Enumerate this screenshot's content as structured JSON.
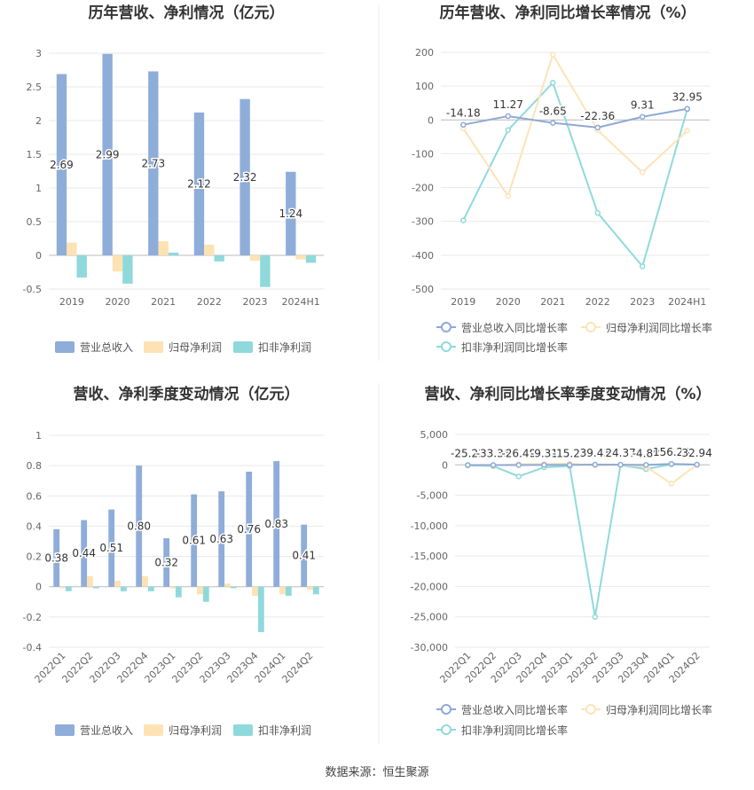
{
  "colors": {
    "revenue": "#8fadd9",
    "net_profit": "#fde2b3",
    "deducted_profit": "#8fd9db",
    "revenue_line": "#8fa9d6",
    "net_profit_line": "#fde3b8",
    "deducted_line": "#8fdadc"
  },
  "footer": {
    "source": "数据来源：恒生聚源"
  },
  "chart_data": [
    {
      "id": "annual-bar",
      "type": "bar",
      "title": "历年营收、净利情况（亿元）",
      "categories": [
        "2019",
        "2020",
        "2021",
        "2022",
        "2023",
        "2024H1"
      ],
      "ylim": [
        -0.5,
        3
      ],
      "yticks": [
        -0.5,
        0,
        0.5,
        1,
        1.5,
        2,
        2.5,
        3
      ],
      "grid": true,
      "legend_position": "bottom",
      "series": [
        {
          "name": "营业总收入",
          "values": [
            2.69,
            2.99,
            2.73,
            2.12,
            2.32,
            1.24
          ],
          "labels": [
            "2.69",
            "2.99",
            "2.73",
            "2.12",
            "2.32",
            "1.24"
          ]
        },
        {
          "name": "归母净利润",
          "values": [
            0.19,
            -0.24,
            0.21,
            0.16,
            -0.08,
            -0.06
          ]
        },
        {
          "name": "扣非净利润",
          "values": [
            -0.33,
            -0.42,
            0.04,
            -0.09,
            -0.47,
            -0.11
          ]
        }
      ]
    },
    {
      "id": "annual-line",
      "type": "line",
      "title": "历年营收、净利同比增长率情况（%）",
      "categories": [
        "2019",
        "2020",
        "2021",
        "2022",
        "2023",
        "2024H1"
      ],
      "ylim": [
        -500,
        200
      ],
      "yticks": [
        -500,
        -400,
        -300,
        -200,
        -100,
        0,
        100,
        200
      ],
      "grid": true,
      "legend_position": "bottom",
      "series": [
        {
          "name": "营业总收入同比增长率",
          "values": [
            -14.18,
            11.27,
            -8.65,
            -22.36,
            9.31,
            32.95
          ],
          "labels": [
            "-14.18",
            "11.27",
            "-8.65",
            "-22.36",
            "9.31",
            "32.95"
          ]
        },
        {
          "name": "归母净利润同比增长率",
          "values": [
            -25,
            -225,
            193,
            -30,
            -155,
            -32
          ]
        },
        {
          "name": "扣非净利润同比增长率",
          "values": [
            -297,
            -30,
            110,
            -275,
            -433,
            32
          ]
        }
      ]
    },
    {
      "id": "quarter-bar",
      "type": "bar",
      "title": "营收、净利季度变动情况（亿元）",
      "categories": [
        "2022Q1",
        "2022Q2",
        "2022Q3",
        "2022Q4",
        "2023Q1",
        "2023Q2",
        "2023Q3",
        "2023Q4",
        "2024Q1",
        "2024Q2"
      ],
      "ylim": [
        -0.4,
        1
      ],
      "yticks": [
        -0.4,
        -0.2,
        0,
        0.2,
        0.4,
        0.6,
        0.8,
        1
      ],
      "grid": true,
      "legend_position": "bottom",
      "series": [
        {
          "name": "营业总收入",
          "values": [
            0.38,
            0.44,
            0.51,
            0.8,
            0.32,
            0.61,
            0.63,
            0.76,
            0.83,
            0.41
          ],
          "labels": [
            "0.38",
            "0.44",
            "0.51",
            "0.80",
            "0.32",
            "0.61",
            "0.63",
            "0.76",
            "0.83",
            "0.41"
          ]
        },
        {
          "name": "归母净利润",
          "values": [
            -0.01,
            0.07,
            0.04,
            0.07,
            -0.01,
            -0.05,
            0.02,
            -0.06,
            -0.05,
            -0.02
          ]
        },
        {
          "name": "扣非净利润",
          "values": [
            -0.03,
            -0.01,
            -0.03,
            -0.03,
            -0.07,
            -0.1,
            -0.01,
            -0.3,
            -0.06,
            -0.05
          ]
        }
      ]
    },
    {
      "id": "quarter-line",
      "type": "line",
      "title": "营收、净利同比增长率季度变动情况（%）",
      "categories": [
        "2022Q1",
        "2022Q2",
        "2022Q3",
        "2022Q4",
        "2023Q1",
        "2023Q2",
        "2023Q3",
        "2023Q4",
        "2024Q1",
        "2024Q2"
      ],
      "ylim": [
        -30000,
        5000
      ],
      "yticks": [
        -30000,
        -25000,
        -20000,
        -15000,
        -10000,
        -5000,
        0,
        5000
      ],
      "grid": true,
      "legend_position": "bottom",
      "series": [
        {
          "name": "营业总收入同比增长率",
          "values": [
            -25.22,
            -33.35,
            -26.48,
            -9.31,
            -15.26,
            39.43,
            24.37,
            -4.88,
            156.26,
            32.94
          ],
          "labels": [
            "-25.22",
            "-33.35",
            "-26.48",
            "-9.31",
            "-15.26",
            "39.43",
            "24.37",
            "-4.88",
            "156.26",
            "32.94"
          ]
        },
        {
          "name": "归母净利润同比增长率",
          "values": [
            -50,
            -80,
            100,
            150,
            200,
            -100,
            0,
            -300,
            -3100,
            20
          ]
        },
        {
          "name": "扣非净利润同比增长率",
          "values": [
            -100,
            -200,
            -1900,
            -400,
            -200,
            -25000,
            -50,
            -700,
            100,
            30
          ]
        }
      ]
    }
  ]
}
